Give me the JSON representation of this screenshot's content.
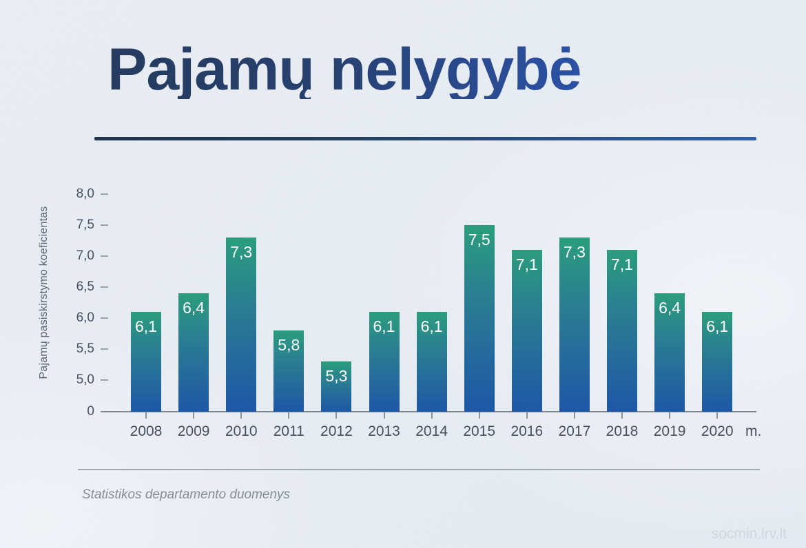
{
  "slide": {
    "title": "Pajamų nelygybė",
    "source": "Statistikos departamento duomenys",
    "watermark": "socmin.lrv.lt"
  },
  "colors": {
    "title_dark": "#263c5f",
    "title_blue": "#2b51a5",
    "bar_gradient_top": "#2b9d7c",
    "bar_gradient_bottom": "#1e57a7",
    "axis_gray": "#7e868f",
    "background": "#edf1f7"
  },
  "chart_data": {
    "type": "bar",
    "title": "Pajamų nelygybė",
    "categories": [
      "2008",
      "2009",
      "2010",
      "2011",
      "2012",
      "2013",
      "2014",
      "2015",
      "2016",
      "2017",
      "2018",
      "2019",
      "2020"
    ],
    "values": [
      6.1,
      6.4,
      7.3,
      5.8,
      5.3,
      6.1,
      6.1,
      7.5,
      7.1,
      7.3,
      7.1,
      6.4,
      6.1
    ],
    "value_labels": [
      "6,1",
      "6,4",
      "7,3",
      "5,8",
      "5,3",
      "6,1",
      "6,1",
      "7,5",
      "7,1",
      "7,3",
      "7,1",
      "6,4",
      "6,1"
    ],
    "xlabel": "m.",
    "ylabel": "Pajamų pasiskirstymo koeficientas",
    "y_ticks": [
      {
        "label": "8,0",
        "value": 8.0
      },
      {
        "label": "7,5",
        "value": 7.5
      },
      {
        "label": "7,0",
        "value": 7.0
      },
      {
        "label": "6,5",
        "value": 6.5
      },
      {
        "label": "6,0",
        "value": 6.0
      },
      {
        "label": "5,5",
        "value": 5.5
      },
      {
        "label": "5,0",
        "value": 5.0
      },
      {
        "label": "0",
        "value": 0
      }
    ],
    "ylim": [
      0,
      8.4
    ],
    "axis_break": true,
    "grid": false,
    "legend": null,
    "value_labels_position": "inside-top",
    "source": "Statistikos departamento duomenys"
  }
}
